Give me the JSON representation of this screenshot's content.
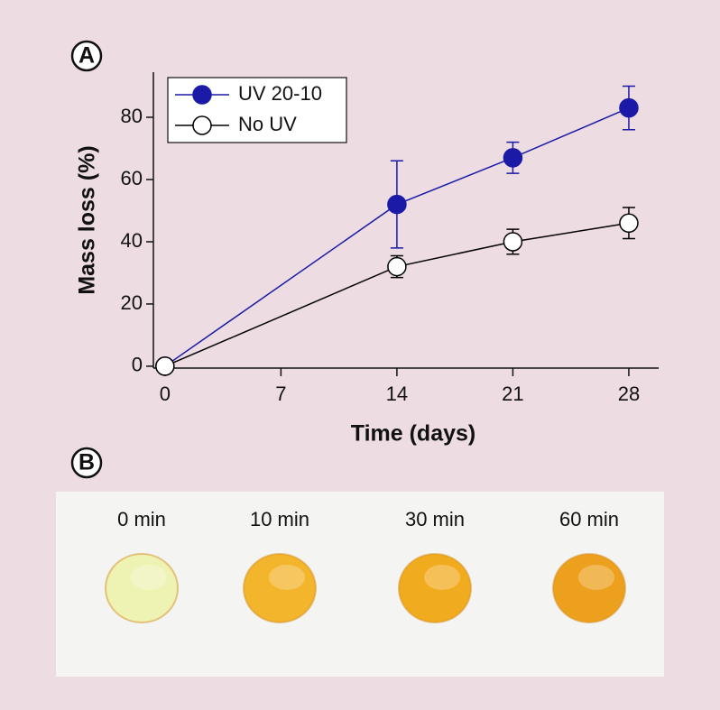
{
  "chart_data": {
    "type": "line",
    "xlabel": "Time (days)",
    "ylabel": "Mass loss (%)",
    "x": [
      0,
      14,
      21,
      28
    ],
    "series": [
      {
        "name": "UV 20-10",
        "color": "#1a1aa6",
        "marker_fill": "#1a1aa6",
        "values": [
          0,
          52,
          67,
          83
        ],
        "errors": [
          0,
          14,
          5,
          7
        ]
      },
      {
        "name": "No UV",
        "color": "#000000",
        "marker_fill": "#ffffff",
        "values": [
          0,
          32,
          40,
          46
        ],
        "errors": [
          0,
          3.5,
          4,
          5
        ]
      }
    ],
    "xlim": [
      -0.7,
      29.8
    ],
    "xticks": [
      0,
      7,
      14,
      21,
      28
    ],
    "ylim": [
      -0.6,
      94.5
    ],
    "yticks": [
      0,
      20,
      40,
      60,
      80
    ],
    "legend": "upper-left",
    "grid": false
  },
  "panels": {
    "a": "A",
    "b": "B"
  },
  "photos": [
    {
      "label": "0 min",
      "color": "#eef3b4"
    },
    {
      "label": "10 min",
      "color": "#f3b52c"
    },
    {
      "label": "30 min",
      "color": "#f1ab1f"
    },
    {
      "label": "60 min",
      "color": "#eda01e"
    }
  ]
}
